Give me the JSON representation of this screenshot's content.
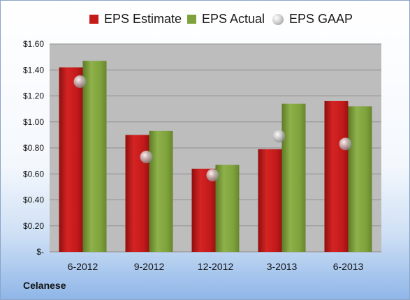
{
  "chart_data": {
    "type": "bar",
    "categories": [
      "6-2012",
      "9-2012",
      "12-2012",
      "3-2013",
      "6-2013"
    ],
    "series": [
      {
        "name": "EPS Estimate",
        "kind": "bar",
        "color": "#c41a1a",
        "values": [
          1.42,
          0.9,
          0.64,
          0.79,
          1.16
        ]
      },
      {
        "name": "EPS Actual",
        "kind": "bar",
        "color": "#7fa23c",
        "values": [
          1.47,
          0.93,
          0.67,
          1.14,
          1.12
        ]
      },
      {
        "name": "EPS GAAP",
        "kind": "marker",
        "color": "#b8b8b8",
        "values": [
          1.31,
          0.73,
          0.59,
          0.89,
          0.83
        ]
      }
    ],
    "yticks": [
      "$-",
      "$0.20",
      "$0.40",
      "$0.60",
      "$0.80",
      "$1.00",
      "$1.20",
      "$1.40",
      "$1.60"
    ],
    "ylim": [
      0,
      1.6
    ],
    "grid": true,
    "legend_position": "top"
  },
  "legend": {
    "estimate": "EPS Estimate",
    "actual": "EPS Actual",
    "gaap": "EPS GAAP"
  },
  "company": "Celanese"
}
